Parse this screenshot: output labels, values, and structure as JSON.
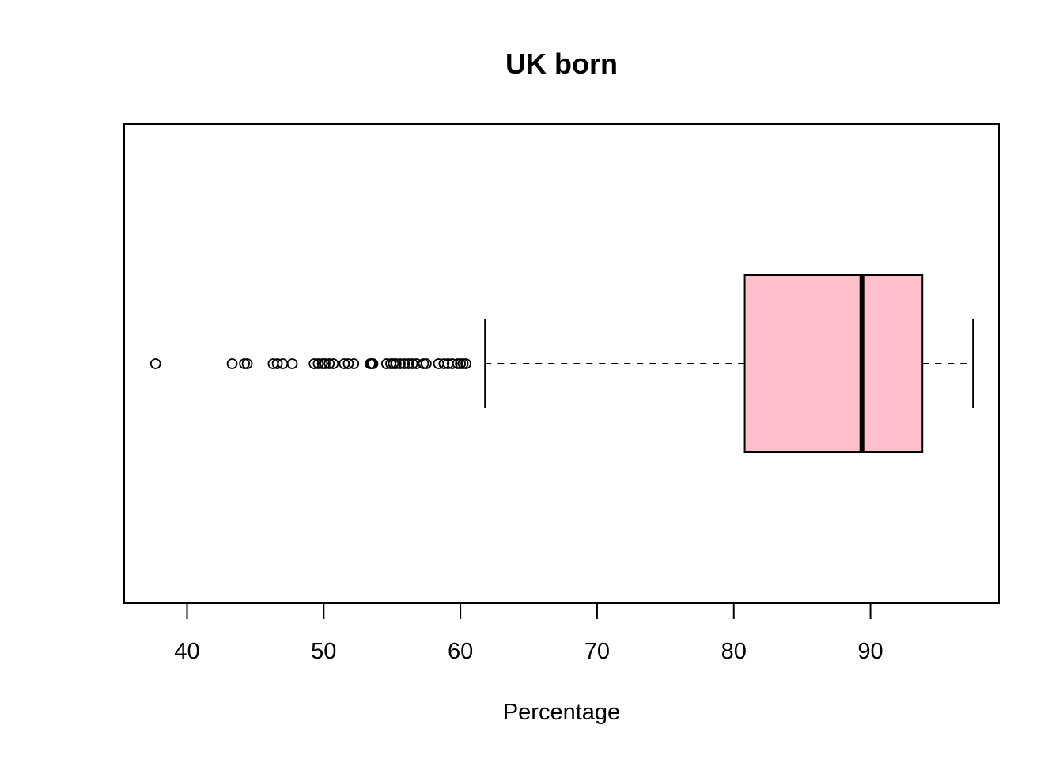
{
  "chart_data": {
    "type": "boxplot",
    "orientation": "horizontal",
    "title": "UK born",
    "xlabel": "Percentage",
    "ylabel": "",
    "xlim": [
      35.4,
      99.4
    ],
    "ticks": [
      40,
      50,
      60,
      70,
      80,
      90
    ],
    "tick_labels": [
      "40",
      "50",
      "60",
      "70",
      "80",
      "90"
    ],
    "box": {
      "whisker_low": 61.8,
      "q1": 80.8,
      "median": 89.4,
      "q3": 93.8,
      "whisker_high": 97.5,
      "fill": "#FFC0CB"
    },
    "outliers": [
      37.7,
      43.3,
      44.2,
      44.4,
      46.3,
      46.6,
      47.0,
      47.7,
      49.3,
      49.6,
      49.9,
      50.1,
      50.4,
      50.7,
      51.5,
      51.8,
      52.2,
      53.4,
      53.5,
      53.6,
      54.6,
      54.9,
      55.1,
      55.3,
      55.6,
      55.9,
      56.2,
      56.5,
      56.8,
      57.3,
      57.5,
      58.4,
      58.8,
      59.1,
      59.4,
      59.8,
      60.0,
      60.2,
      60.4
    ],
    "grid": false,
    "legend": "none"
  }
}
